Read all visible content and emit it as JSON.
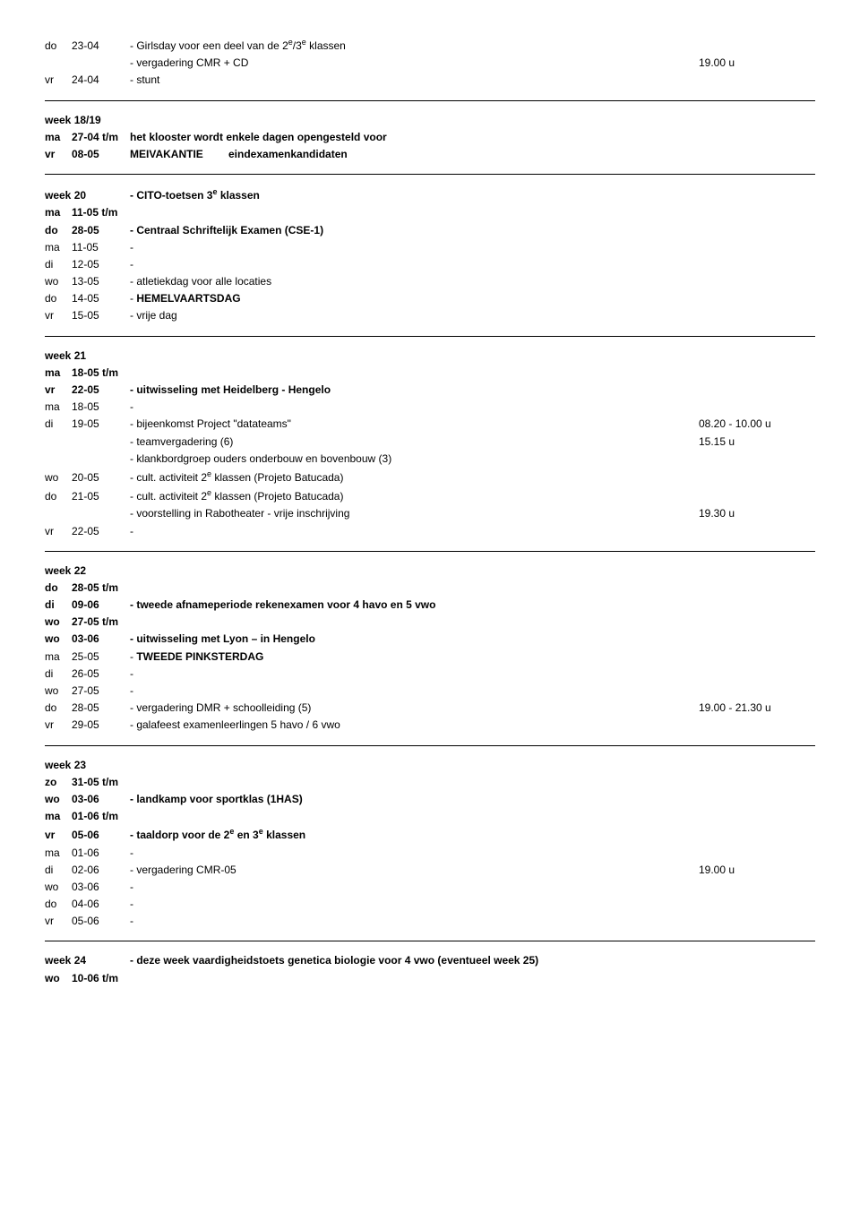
{
  "intro_rows": [
    {
      "day": "do",
      "date": "23-04",
      "desc": "- Girlsday voor een deel van de 2<sup>e</sup>/3<sup>e</sup> klassen",
      "time": ""
    },
    {
      "day": "",
      "date": "",
      "desc": "- vergadering CMR + CD",
      "time": "19.00 u"
    },
    {
      "day": "vr",
      "date": "24-04",
      "desc": "- stunt",
      "time": ""
    }
  ],
  "weeks": [
    {
      "header": {
        "title": "week 18/19",
        "extra": ""
      },
      "rows": [
        {
          "day": "ma",
          "date": "27-04 t/m",
          "desc": "",
          "time": "",
          "bold_date": true,
          "desc_extra": "het klooster wordt enkele dagen opengesteld voor",
          "desc_extra_bold": true
        },
        {
          "day": "vr",
          "date": "08-05",
          "desc": "",
          "time": "",
          "bold_date": true,
          "label": "MEIVAKANTIE",
          "label_bold": true,
          "desc_extra": "eindexamenkandidaten",
          "desc_extra_bold": true
        }
      ]
    },
    {
      "header": {
        "title": "week 20",
        "extra": "- CITO-toetsen 3<sup>e</sup> klassen",
        "extra_bold": true
      },
      "rows": [
        {
          "day": "ma",
          "date": "11-05 t/m",
          "desc": "",
          "time": "",
          "bold_date": true
        },
        {
          "day": "do",
          "date": "28-05",
          "desc": "- Centraal Schriftelijk Examen (CSE-1)",
          "time": "",
          "bold_date": true,
          "desc_bold": true
        },
        {
          "day": "ma",
          "date": "11-05",
          "desc": "-",
          "time": ""
        },
        {
          "day": "di",
          "date": "12-05",
          "desc": "-",
          "time": ""
        },
        {
          "day": "wo",
          "date": "13-05",
          "desc": "- atletiekdag voor alle locaties",
          "time": ""
        },
        {
          "day": "do",
          "date": "14-05",
          "desc": "- <b>HEMELVAARTSDAG</b>",
          "time": ""
        },
        {
          "day": "vr",
          "date": "15-05",
          "desc": "- vrije dag",
          "time": ""
        }
      ]
    },
    {
      "header": {
        "title": "week 21",
        "extra": ""
      },
      "rows": [
        {
          "day": "ma",
          "date": "18-05 t/m",
          "desc": "",
          "time": "",
          "bold_date": true
        },
        {
          "day": "vr",
          "date": "22-05",
          "desc": "- uitwisseling met Heidelberg - Hengelo",
          "time": "",
          "bold_date": true,
          "desc_bold": true
        },
        {
          "day": "ma",
          "date": "18-05",
          "desc": "-",
          "time": ""
        },
        {
          "day": "di",
          "date": "19-05",
          "desc": "- bijeenkomst Project \"datateams\"",
          "time": "08.20 - 10.00 u"
        },
        {
          "day": "",
          "date": "",
          "desc": "- teamvergadering (6)",
          "time": "15.15 u"
        },
        {
          "day": "",
          "date": "",
          "desc": "- klankbordgroep ouders onderbouw en bovenbouw (3)",
          "time": ""
        },
        {
          "day": "wo",
          "date": "20-05",
          "desc": "- cult. activiteit 2<sup>e</sup> klassen (Projeto Batucada)",
          "time": ""
        },
        {
          "day": "do",
          "date": "21-05",
          "desc": "- cult. activiteit 2<sup>e</sup> klassen (Projeto Batucada)",
          "time": ""
        },
        {
          "day": "",
          "date": "",
          "desc": "- voorstelling in Rabotheater - vrije inschrijving",
          "time": "19.30 u"
        },
        {
          "day": "vr",
          "date": "22-05",
          "desc": "-",
          "time": ""
        }
      ]
    },
    {
      "header": {
        "title": "week 22",
        "extra": ""
      },
      "rows": [
        {
          "day": "do",
          "date": "28-05 t/m",
          "desc": "",
          "time": "",
          "bold_date": true
        },
        {
          "day": "di",
          "date": "09-06",
          "desc": "- tweede afnameperiode rekenexamen voor 4 havo en 5 vwo",
          "time": "",
          "bold_date": true,
          "desc_bold": true
        },
        {
          "day": "wo",
          "date": "27-05 t/m",
          "desc": "",
          "time": "",
          "bold_date": true
        },
        {
          "day": "wo",
          "date": "03-06",
          "desc": "- uitwisseling met Lyon – in Hengelo",
          "time": "",
          "bold_date": true,
          "desc_bold": true
        },
        {
          "day": "ma",
          "date": "25-05",
          "desc": "- <b>TWEEDE PINKSTERDAG</b>",
          "time": ""
        },
        {
          "day": "di",
          "date": "26-05",
          "desc": "-",
          "time": ""
        },
        {
          "day": "wo",
          "date": "27-05",
          "desc": "-",
          "time": ""
        },
        {
          "day": "do",
          "date": "28-05",
          "desc": "- vergadering DMR + schoolleiding (5)",
          "time": "19.00 - 21.30 u"
        },
        {
          "day": "vr",
          "date": "29-05",
          "desc": "- galafeest examenleerlingen 5 havo / 6 vwo",
          "time": ""
        }
      ]
    },
    {
      "header": {
        "title": "week 23",
        "extra": ""
      },
      "rows": [
        {
          "day": "zo",
          "date": "31-05 t/m",
          "desc": "",
          "time": "",
          "bold_date": true
        },
        {
          "day": "wo",
          "date": "03-06",
          "desc": "- landkamp voor sportklas (1HAS)",
          "time": "",
          "bold_date": true,
          "desc_bold": true
        },
        {
          "day": "ma",
          "date": "01-06 t/m",
          "desc": "",
          "time": "",
          "bold_date": true
        },
        {
          "day": "vr",
          "date": "05-06",
          "desc": "- taaldorp voor de 2<sup>e</sup> en 3<sup>e</sup> klassen",
          "time": "",
          "bold_date": true,
          "desc_bold": true
        },
        {
          "day": "ma",
          "date": "01-06",
          "desc": "-",
          "time": ""
        },
        {
          "day": "di",
          "date": "02-06",
          "desc": "- vergadering CMR-05",
          "time": "19.00 u"
        },
        {
          "day": "wo",
          "date": "03-06",
          "desc": "-",
          "time": ""
        },
        {
          "day": "do",
          "date": "04-06",
          "desc": "-",
          "time": ""
        },
        {
          "day": "vr",
          "date": "05-06",
          "desc": "-",
          "time": ""
        }
      ]
    },
    {
      "header": {
        "title": "week 24",
        "extra": "- deze week vaardigheidstoets genetica biologie voor 4 vwo (eventueel week 25)",
        "extra_bold": true
      },
      "rows": [
        {
          "day": "wo",
          "date": "10-06 t/m",
          "desc": "",
          "time": "",
          "bold_date": true
        }
      ],
      "no_hr_after": true
    }
  ]
}
